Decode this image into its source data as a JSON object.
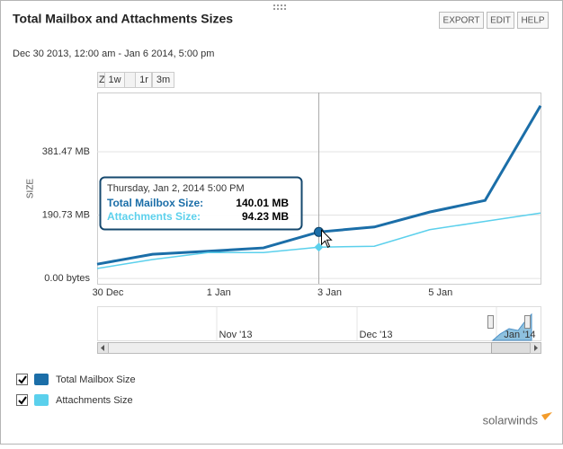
{
  "header": {
    "title": "Total Mailbox and Attachments Sizes",
    "buttons": [
      "EXPORT",
      "EDIT",
      "HELP"
    ],
    "date_range": "Dec 30 2013, 12:00 am - Jan 6 2014, 5:00 pm",
    "zoom": [
      "Z",
      "1w",
      "1r",
      "3m"
    ]
  },
  "chart_data": {
    "type": "line",
    "y_label": "SIZE",
    "categories": [
      "30 Dec",
      null,
      "1 Jan",
      null,
      "3 Jan",
      null,
      "5 Jan",
      null,
      null
    ],
    "series": [
      {
        "name": "Total Mailbox Size",
        "color": "#1b6ea8",
        "values": [
          43,
          73,
          82,
          92,
          140.01,
          155,
          200,
          235,
          520
        ]
      },
      {
        "name": "Attachments Size",
        "color": "#5bd0ec",
        "values": [
          30,
          57,
          78,
          78,
          94.23,
          97,
          147,
          172,
          197
        ]
      }
    ],
    "ylim": [
      -16,
      560
    ],
    "yticks": [
      {
        "value": 0,
        "label": "0.00 bytes"
      },
      {
        "value": 190.73,
        "label": "190.73 MB"
      },
      {
        "value": 381.47,
        "label": "381.47 MB"
      }
    ],
    "grid": true,
    "tooltip": {
      "title": "Thursday, Jan 2, 2014 5:00 PM",
      "labels": [
        "Total Mailbox Size:",
        "Attachments Size:"
      ],
      "values": [
        "140.01 MB",
        "94.23 MB"
      ]
    }
  },
  "navigator": {
    "labels": [
      "Nov '13",
      "Dec '13",
      "Jan '14"
    ]
  },
  "footer": {
    "brand": "solarwinds"
  }
}
